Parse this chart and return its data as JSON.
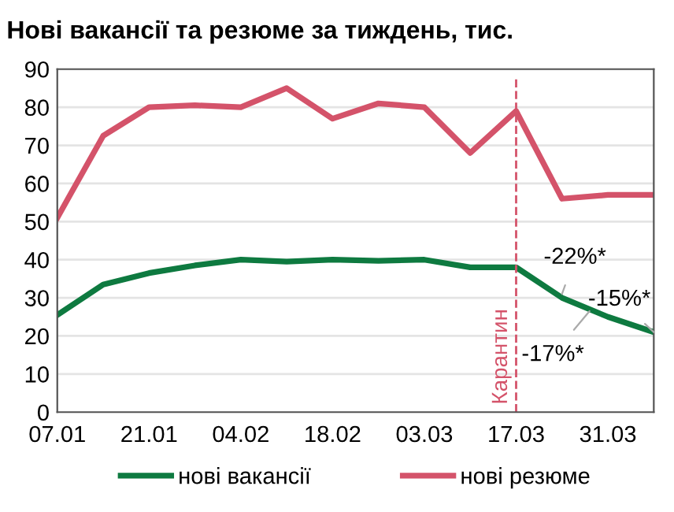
{
  "chart_data": {
    "type": "line",
    "title": "Нові вакансії та резюме за тиждень, тис.",
    "categories": [
      "07.01",
      null,
      "21.01",
      null,
      "04.02",
      null,
      "18.02",
      null,
      "03.03",
      null,
      "17.03",
      null,
      "31.03",
      null
    ],
    "series": [
      {
        "name": "нові вакансії",
        "color": "#0e7a40",
        "values": [
          25.5,
          33.5,
          36.5,
          38.5,
          40,
          39.5,
          40,
          39.7,
          40,
          38,
          38,
          30,
          25,
          21
        ]
      },
      {
        "name": "нові резюме",
        "color": "#d4536a",
        "values": [
          51,
          72.5,
          80,
          80.5,
          80,
          85,
          77,
          81,
          80,
          68,
          79,
          56,
          57,
          57
        ]
      }
    ],
    "ylim": [
      0,
      90
    ],
    "yticks": [
      0,
      10,
      20,
      30,
      40,
      50,
      60,
      70,
      80,
      90
    ],
    "grid": "y",
    "legend": "bottom",
    "marker": "none",
    "line_style": "solid",
    "ref_lines": [
      {
        "axis": "x",
        "value": "17.03",
        "label": "Карантин",
        "color": "#d4536a",
        "line_style": "dashed"
      }
    ],
    "annotations": [
      "-22%*",
      "-17%*",
      "-15%*"
    ]
  }
}
